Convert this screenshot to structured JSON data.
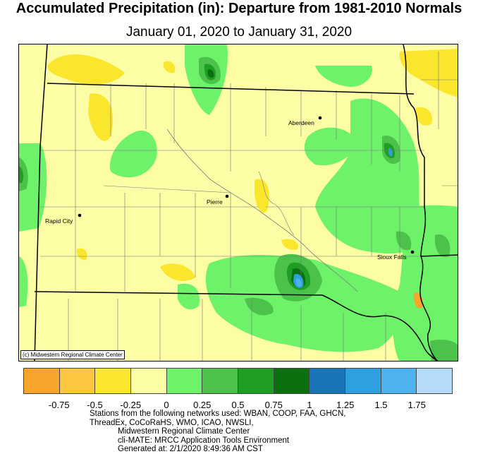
{
  "title": "Accumulated Precipitation (in): Departure from 1981-2010 Normals",
  "subtitle": "January 01, 2020 to January 31, 2020",
  "copyright": "(c) Midwestern Regional Climate Center",
  "cities": [
    {
      "name": "Aberdeen"
    },
    {
      "name": "Pierre"
    },
    {
      "name": "Rapid City"
    },
    {
      "name": "Sioux Falls"
    }
  ],
  "legend": {
    "colors": [
      "#f9a52b",
      "#fcc63f",
      "#fbe62e",
      "#fdfda5",
      "#6ef26a",
      "#4cc24a",
      "#1e9e22",
      "#0a7010",
      "#1a74b8",
      "#2f9fe0",
      "#4cb3ee",
      "#b4dbf8"
    ],
    "ticks": [
      "-0.75",
      "-0.5",
      "-0.25",
      "0",
      "0.25",
      "0.5",
      "0.75",
      "1",
      "1.25",
      "1.5",
      "1.75"
    ]
  },
  "footer": [
    "Stations from the following networks used: WBAN, COOP, FAA, GHCN,",
    "ThreadEx, CoCoRaHS, WMO, ICAO, NWSLI,",
    "Midwestern Regional Climate Center",
    "cli-MATE: MRCC Application Tools Environment",
    "Generated at: 2/1/2020 8:49:36 AM CST"
  ]
}
